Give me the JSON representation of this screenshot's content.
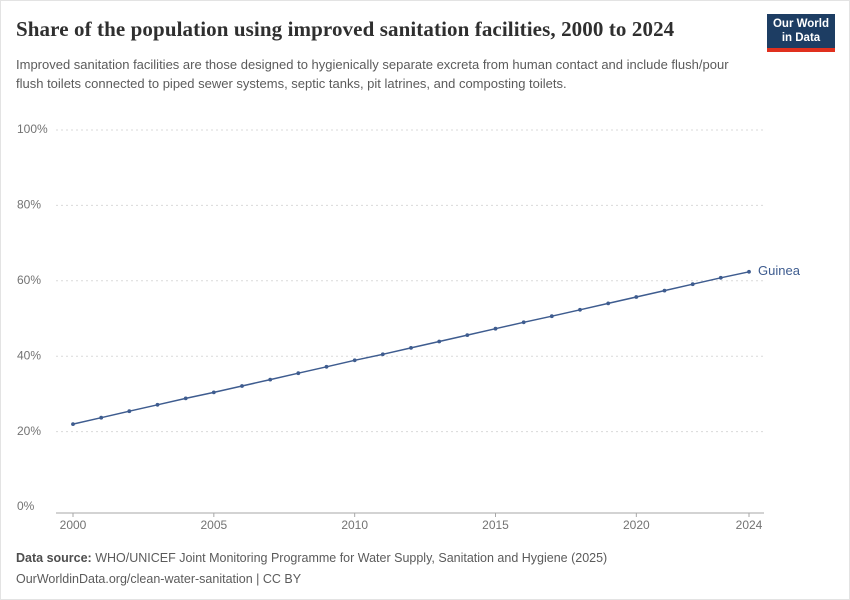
{
  "header": {
    "title": "Share of the population using improved sanitation facilities, 2000 to 2024",
    "subtitle": "Improved sanitation facilities are those designed to hygienically separate excreta from human contact and include flush/pour flush toilets connected to piped sewer systems, septic tanks, pit latrines, and composting toilets.",
    "logo": {
      "line1": "Our World",
      "line2": "in Data"
    }
  },
  "chart_data": {
    "type": "line",
    "title": "Share of the population using improved sanitation facilities, 2000 to 2024",
    "xlabel": "",
    "ylabel": "",
    "x": [
      2000,
      2001,
      2002,
      2003,
      2004,
      2005,
      2006,
      2007,
      2008,
      2009,
      2010,
      2011,
      2012,
      2013,
      2014,
      2015,
      2016,
      2017,
      2018,
      2019,
      2020,
      2021,
      2022,
      2023,
      2024
    ],
    "series": [
      {
        "name": "Guinea",
        "color": "#3e5c8f",
        "values": [
          22.0,
          23.7,
          25.4,
          27.1,
          28.8,
          30.4,
          32.1,
          33.8,
          35.5,
          37.2,
          38.9,
          40.5,
          42.2,
          43.9,
          45.6,
          47.3,
          49.0,
          50.6,
          52.3,
          54.0,
          55.7,
          57.4,
          59.1,
          60.8,
          62.4
        ]
      }
    ],
    "ylim": [
      0,
      100
    ],
    "yticks": [
      0,
      20,
      40,
      60,
      80,
      100
    ],
    "y_tick_suffix": "%",
    "xticks": [
      2000,
      2005,
      2010,
      2015,
      2020,
      2024
    ],
    "grid": true,
    "legend": "end-of-line-label"
  },
  "footer": {
    "source_label": "Data source:",
    "source_text": " WHO/UNICEF Joint Monitoring Programme for Water Supply, Sanitation and Hygiene (2025)",
    "link_text": "OurWorldinData.org/clean-water-sanitation | CC BY"
  },
  "colors": {
    "accent_blue": "#3e5c8f",
    "logo_bg": "#1d3d63",
    "logo_red": "#e0301e",
    "gridline": "#dadada",
    "axis": "#a7a7a7",
    "tick_label": "#737373"
  }
}
